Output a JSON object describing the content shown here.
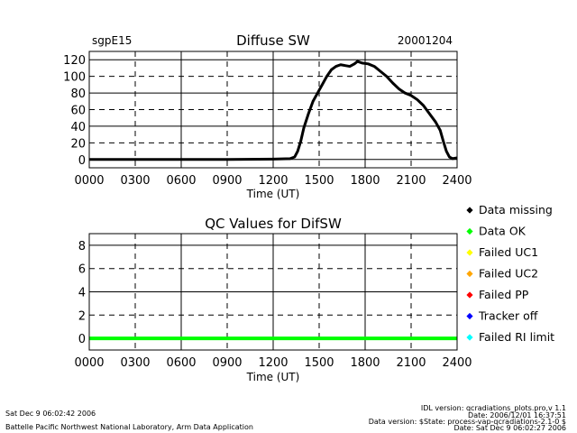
{
  "header": {
    "site": "sgpE15",
    "date": "20001204"
  },
  "chart_data": [
    {
      "type": "line",
      "title": "Diffuse SW",
      "xlabel": "Time (UT)",
      "ylabel": "",
      "x_tick_labels": [
        "0000",
        "0300",
        "0600",
        "0900",
        "1200",
        "1500",
        "1800",
        "2100",
        "2400"
      ],
      "y_tick_labels": [
        "0",
        "20",
        "40",
        "60",
        "80",
        "100",
        "120"
      ],
      "xlim": [
        0,
        24
      ],
      "ylim": [
        -10,
        130
      ],
      "grid": true,
      "series": [
        {
          "color": "#000000",
          "x": [
            0,
            3,
            6,
            9,
            12,
            13.1,
            13.4,
            13.6,
            13.8,
            14.0,
            14.3,
            14.6,
            14.9,
            15.2,
            15.5,
            15.8,
            16.1,
            16.4,
            16.7,
            17.0,
            17.3,
            17.5,
            17.8,
            18.2,
            18.6,
            19.0,
            19.4,
            19.8,
            20.2,
            20.6,
            21.0,
            21.4,
            21.8,
            22.2,
            22.6,
            22.9,
            23.1,
            23.3,
            23.5,
            23.7,
            24.0
          ],
          "y": [
            0,
            0,
            0,
            0,
            0.5,
            1,
            3,
            10,
            22,
            38,
            55,
            70,
            80,
            90,
            100,
            108,
            112,
            114,
            113,
            112,
            115,
            118,
            116,
            115,
            112,
            106,
            100,
            92,
            85,
            80,
            77,
            72,
            65,
            55,
            45,
            35,
            22,
            10,
            3,
            1,
            2
          ]
        }
      ]
    },
    {
      "type": "line",
      "title": "QC Values for DifSW",
      "xlabel": "Time (UT)",
      "ylabel": "",
      "x_tick_labels": [
        "0000",
        "0300",
        "0600",
        "0900",
        "1200",
        "1500",
        "1800",
        "2100",
        "2400"
      ],
      "y_tick_labels": [
        "0",
        "2",
        "4",
        "6",
        "8"
      ],
      "xlim": [
        0,
        24
      ],
      "ylim": [
        -1,
        9
      ],
      "grid": true,
      "series": [
        {
          "color": "#00ff00",
          "x": [
            0,
            24
          ],
          "y": [
            0,
            0
          ]
        }
      ]
    }
  ],
  "legend": [
    {
      "label": "Data missing",
      "color": "#000000"
    },
    {
      "label": "Data OK",
      "color": "#00ff00"
    },
    {
      "label": "Failed UC1",
      "color": "#ffff00"
    },
    {
      "label": "Failed UC2",
      "color": "#ffa500"
    },
    {
      "label": "Failed PP",
      "color": "#ff0000"
    },
    {
      "label": "Tracker off",
      "color": "#0000ff"
    },
    {
      "label": "Failed RI limit",
      "color": "#00ffff"
    }
  ],
  "footer": {
    "left_date": "Sat Dec  9 06:02:42 2006",
    "lab": "Battelle Pacific Northwest National Laboratory, Arm Data Application",
    "right_lines": [
      "IDL version: qcradiations_plots.pro,v 1.1",
      "Date: 2006/12/01 16:37:51",
      "Data version: $State: process-vap-qcradiations-2.1-0 $",
      "Date: Sat Dec  9 06:02:27 2006"
    ]
  }
}
